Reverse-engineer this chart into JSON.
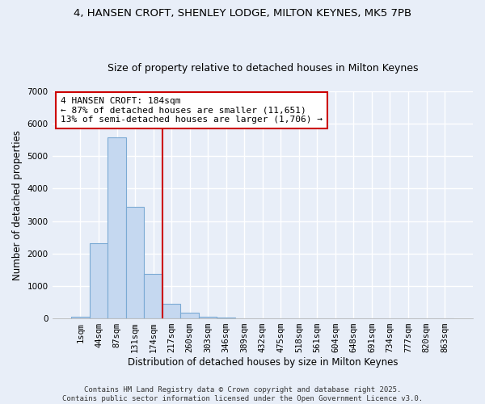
{
  "title": "4, HANSEN CROFT, SHENLEY LODGE, MILTON KEYNES, MK5 7PB",
  "subtitle": "Size of property relative to detached houses in Milton Keynes",
  "xlabel": "Distribution of detached houses by size in Milton Keynes",
  "ylabel": "Number of detached properties",
  "bin_labels": [
    "1sqm",
    "44sqm",
    "87sqm",
    "131sqm",
    "174sqm",
    "217sqm",
    "260sqm",
    "303sqm",
    "346sqm",
    "389sqm",
    "432sqm",
    "475sqm",
    "518sqm",
    "561sqm",
    "604sqm",
    "648sqm",
    "691sqm",
    "734sqm",
    "777sqm",
    "820sqm",
    "863sqm"
  ],
  "bar_values": [
    60,
    2310,
    5580,
    3450,
    1360,
    460,
    175,
    60,
    20,
    0,
    0,
    0,
    0,
    0,
    0,
    0,
    0,
    0,
    0,
    0,
    0
  ],
  "bar_color": "#c5d8f0",
  "bar_edge_color": "#7baad4",
  "vline_x": 4.5,
  "vline_color": "#cc0000",
  "ylim": [
    0,
    7000
  ],
  "yticks": [
    0,
    1000,
    2000,
    3000,
    4000,
    5000,
    6000,
    7000
  ],
  "annotation_title": "4 HANSEN CROFT: 184sqm",
  "annotation_line1": "← 87% of detached houses are smaller (11,651)",
  "annotation_line2": "13% of semi-detached houses are larger (1,706) →",
  "annotation_box_color": "white",
  "annotation_box_edge": "#cc0000",
  "footer1": "Contains HM Land Registry data © Crown copyright and database right 2025.",
  "footer2": "Contains public sector information licensed under the Open Government Licence v3.0.",
  "background_color": "#e8eef8",
  "grid_color": "white",
  "title_fontsize": 9.5,
  "subtitle_fontsize": 9,
  "axis_label_fontsize": 8.5,
  "tick_fontsize": 7.5,
  "annotation_fontsize": 8,
  "footer_fontsize": 6.5
}
